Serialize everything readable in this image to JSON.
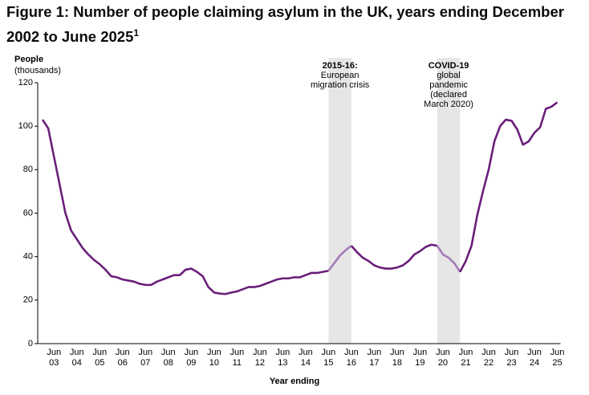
{
  "chart_data": {
    "type": "line",
    "title": "Figure 1: Number of people claiming asylum in the UK, years ending December 2002 to June 2025",
    "title_note": "1",
    "y_label": "People",
    "y_label_units": "(thousands)",
    "x_label": "Year ending",
    "categories": [
      null,
      null,
      "Jun 03",
      null,
      null,
      null,
      "Jun 04",
      null,
      null,
      null,
      "Jun 05",
      null,
      null,
      null,
      "Jun 06",
      null,
      null,
      null,
      "Jun 07",
      null,
      null,
      null,
      "Jun 08",
      null,
      null,
      null,
      "Jun 09",
      null,
      null,
      null,
      "Jun 10",
      null,
      null,
      null,
      "Jun 11",
      null,
      null,
      null,
      "Jun 12",
      null,
      null,
      null,
      "Jun 13",
      null,
      null,
      null,
      "Jun 14",
      null,
      null,
      null,
      "Jun 15",
      null,
      null,
      null,
      "Jun 16",
      null,
      null,
      null,
      "Jun 17",
      null,
      null,
      null,
      "Jun 18",
      null,
      null,
      null,
      "Jun 19",
      null,
      null,
      null,
      "Jun 20",
      null,
      null,
      null,
      "Jun 21",
      null,
      null,
      null,
      "Jun 22",
      null,
      null,
      null,
      "Jun 23",
      null,
      null,
      null,
      "Jun 24",
      null,
      null,
      null,
      "Jun 25"
    ],
    "values": [
      103,
      99,
      86,
      73,
      60,
      52,
      48,
      44,
      41,
      38.5,
      36.5,
      34,
      31,
      30.5,
      29.5,
      29,
      28.5,
      27.5,
      27,
      27,
      28.5,
      29.5,
      30.5,
      31.5,
      31.5,
      34,
      34.5,
      33,
      31,
      26,
      23.5,
      23,
      22.8,
      23.5,
      24,
      25,
      26,
      26,
      26.5,
      27.5,
      28.5,
      29.5,
      30,
      30,
      30.5,
      30.5,
      31.5,
      32.5,
      32.5,
      33,
      33.5,
      37,
      40.5,
      43,
      45,
      42,
      39.5,
      38,
      36,
      35,
      34.5,
      34.5,
      35,
      36,
      38,
      41,
      42.5,
      44.5,
      45.5,
      45,
      41,
      39.5,
      37,
      33,
      38,
      45,
      59,
      70,
      80,
      93,
      100,
      103,
      102.5,
      98.5,
      91.5,
      93,
      97,
      99.5,
      108,
      109,
      111
    ],
    "color": "#6a1f7a",
    "highlight_color": "#a67bb9",
    "band_color": "#e6e6e6",
    "highlights": [
      {
        "start": 50,
        "end": 54,
        "label_bold": "2015-16:",
        "label_rest": " European migration crisis"
      },
      {
        "start": 69,
        "end": 73,
        "label_bold": "COVID-19",
        "label_rest": " global pandemic (declared March 2020)"
      }
    ],
    "ylim": [
      0,
      120
    ],
    "yticks": [
      0,
      20,
      40,
      60,
      80,
      100,
      120
    ]
  }
}
